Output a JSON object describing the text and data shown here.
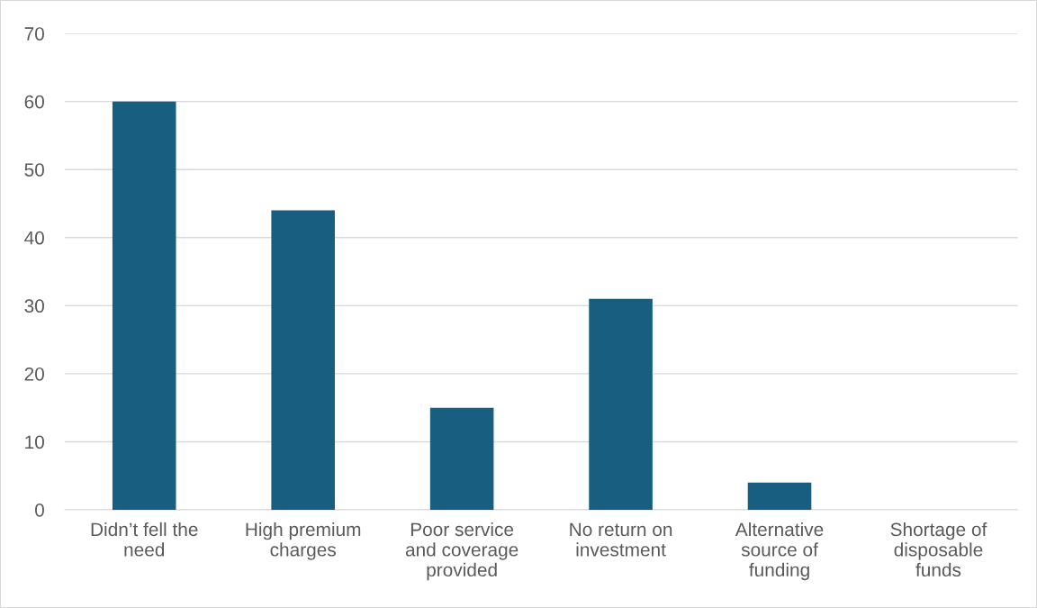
{
  "chart_data": {
    "type": "bar",
    "categories": [
      "Didn’t fell the\nneed",
      "High premium\ncharges",
      "Poor service\nand coverage\nprovided",
      "No return on\ninvestment",
      "Alternative\nsource of\nfunding",
      "Shortage of\ndisposable\nfunds"
    ],
    "values": [
      60,
      44,
      15,
      31,
      4,
      0
    ],
    "color": "#175e81",
    "ylim": [
      0,
      70
    ],
    "yticks": [
      0,
      10,
      20,
      30,
      40,
      50,
      60,
      70
    ],
    "grid": "y"
  }
}
